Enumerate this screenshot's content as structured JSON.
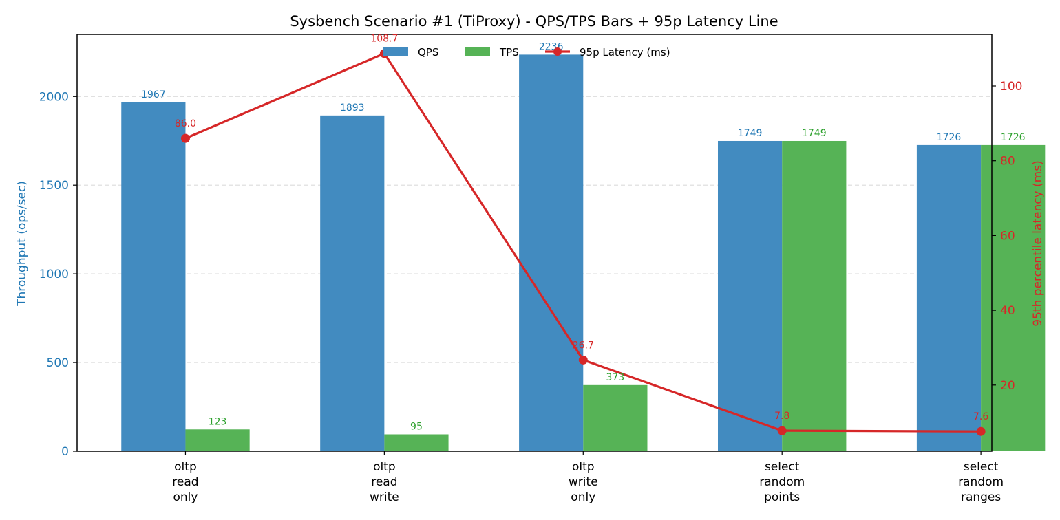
{
  "chart_data": {
    "type": "bar",
    "title": "Sysbench Scenario #1 (TiProxy) - QPS/TPS Bars + 95p Latency Line",
    "ylabel": "Throughput (ops/sec)",
    "y2label": "95th percentile latency (ms)",
    "xlabel": "",
    "categories": [
      [
        "oltp",
        "read",
        "only"
      ],
      [
        "oltp",
        "read",
        "write"
      ],
      [
        "oltp",
        "write",
        "only"
      ],
      [
        "select",
        "random",
        "points"
      ],
      [
        "select",
        "random",
        "ranges"
      ]
    ],
    "series": [
      {
        "name": "QPS",
        "kind": "bar",
        "axis": "left",
        "color": "#1f77b4",
        "fill": "#428bc0",
        "values": [
          1967,
          1893,
          2236,
          1749,
          1726
        ],
        "labels": [
          "1967",
          "1893",
          "2236",
          "1749",
          "1726"
        ]
      },
      {
        "name": "TPS",
        "kind": "bar",
        "axis": "left",
        "color": "#2ca02c",
        "fill": "#56b356",
        "values": [
          123,
          95,
          373,
          1749,
          1726
        ],
        "labels": [
          "123",
          "95",
          "373",
          "1749",
          "1726"
        ]
      },
      {
        "name": "95p Latency (ms)",
        "kind": "line",
        "axis": "right",
        "color": "#d62728",
        "values": [
          86.0,
          108.7,
          26.7,
          7.8,
          7.6
        ],
        "labels": [
          "86.0",
          "108.7",
          "26.7",
          "7.8",
          "7.6"
        ]
      }
    ],
    "ylim": [
      0,
      2350
    ],
    "yticks": [
      0,
      500,
      1000,
      1500,
      2000
    ],
    "y2lim": [
      2.3,
      113.8
    ],
    "y2ticks": [
      20,
      40,
      60,
      80,
      100
    ],
    "grid": "horizontal dashed",
    "legend": "top-center",
    "colors": {
      "left_axis": "#1f77b4",
      "right_axis": "#d62728"
    }
  }
}
